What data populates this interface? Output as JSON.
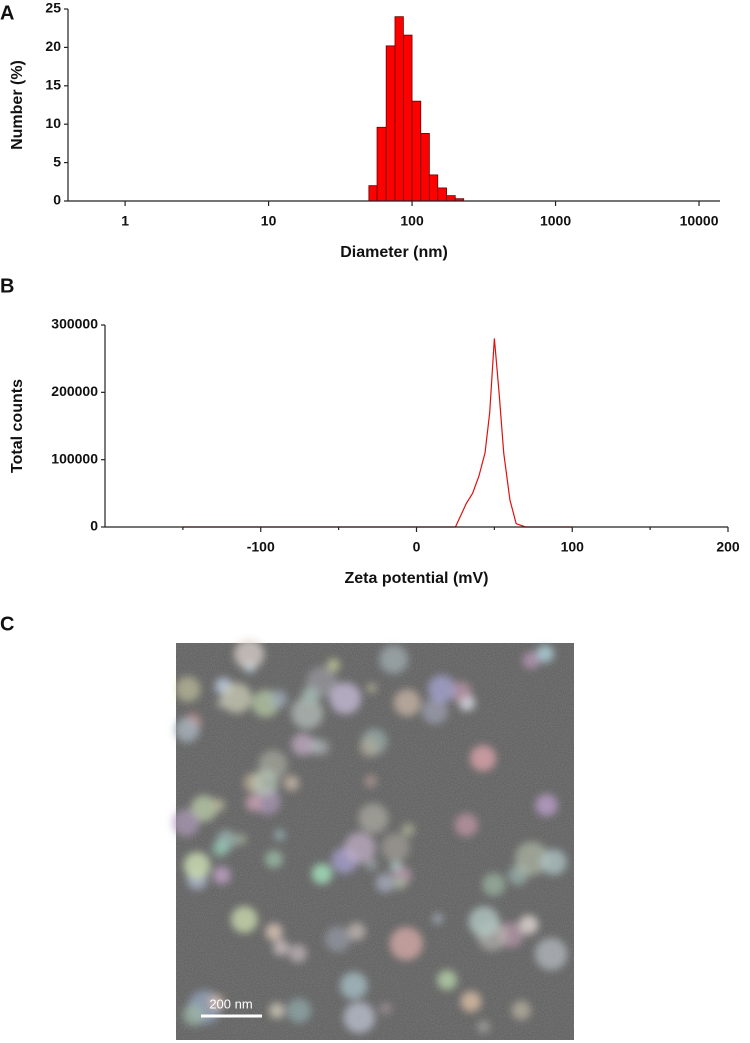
{
  "chart_data": [
    {
      "type": "histogram",
      "panel": "A",
      "xlabel": "Diameter (nm)",
      "ylabel": "Number (%)",
      "xscale": "log",
      "xlim": [
        0.4,
        14000
      ],
      "xticks": [
        1,
        10,
        100,
        1000,
        10000
      ],
      "ylim": [
        0,
        25
      ],
      "yticks": [
        0,
        5,
        10,
        15,
        20,
        25
      ],
      "bins": [
        50,
        57,
        66,
        76,
        87,
        100,
        115,
        132,
        151,
        174,
        200,
        229
      ],
      "values": [
        2,
        9.6,
        20.2,
        24,
        21.6,
        13,
        8.8,
        3.4,
        1.7,
        0.7,
        0.3
      ],
      "color": "#ff0000"
    },
    {
      "type": "line",
      "panel": "B",
      "xlabel": "Zeta potential (mV)",
      "ylabel": "Total counts",
      "xlim": [
        -200,
        200
      ],
      "xticks": [
        -100,
        0,
        100,
        200
      ],
      "xminor_ticks": [
        -150,
        -50,
        50,
        150
      ],
      "ylim": [
        0,
        300000
      ],
      "yticks": [
        0,
        100000,
        200000,
        300000
      ],
      "x": [
        -150,
        -100,
        -50,
        0,
        25,
        28,
        32,
        36,
        40,
        44,
        47,
        50,
        53,
        56,
        60,
        64,
        70,
        100
      ],
      "values": [
        0,
        0,
        0,
        0,
        0,
        15000,
        35000,
        50000,
        75000,
        110000,
        170000,
        280000,
        200000,
        110000,
        40000,
        5000,
        0,
        0
      ],
      "color": "#e01010"
    }
  ],
  "image": {
    "panel": "C",
    "scale_bar": "200 nm"
  }
}
